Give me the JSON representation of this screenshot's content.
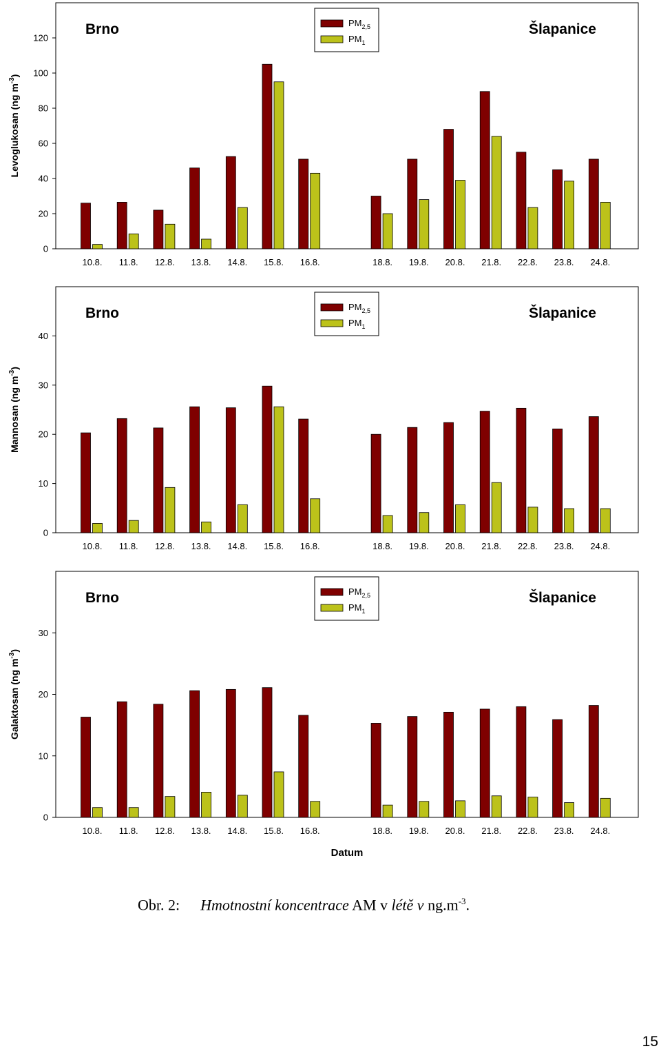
{
  "chart_data": [
    {
      "type": "bar",
      "site_left": "Brno",
      "site_right": "Šlapanice",
      "ylabel": "Levoglukosan (ng m-3)",
      "ylabel_main": "Levoglukosan (ng m",
      "ylabel_sup": "-3",
      "ylabel_end": ")",
      "ylim": [
        0,
        140
      ],
      "yticks": [
        0,
        20,
        40,
        60,
        80,
        100,
        120
      ],
      "categories": [
        "10.8.",
        "11.8.",
        "12.8.",
        "13.8.",
        "14.8.",
        "15.8.",
        "16.8.",
        "18.8.",
        "19.8.",
        "20.8.",
        "21.8.",
        "22.8.",
        "23.8.",
        "24.8."
      ],
      "series": [
        {
          "name": "PM2,5",
          "color": "#7f0000",
          "values": [
            26,
            26.5,
            22,
            46,
            52.5,
            105,
            51,
            30,
            51,
            68,
            89.5,
            55,
            45,
            51
          ]
        },
        {
          "name": "PM1",
          "color": "#bcc21a",
          "values": [
            2.5,
            8.5,
            14,
            5.5,
            23.5,
            95,
            43,
            20,
            28,
            39,
            64,
            23.5,
            38.5,
            26.5
          ]
        }
      ],
      "legend": "top-center",
      "xlabel": ""
    },
    {
      "type": "bar",
      "site_left": "Brno",
      "site_right": "Šlapanice",
      "ylabel": "Mannosan (ng m-3)",
      "ylabel_main": "Mannosan (ng m",
      "ylabel_sup": "-3",
      "ylabel_end": ")",
      "ylim": [
        0,
        50
      ],
      "yticks": [
        0,
        10,
        20,
        30,
        40
      ],
      "categories": [
        "10.8.",
        "11.8.",
        "12.8.",
        "13.8.",
        "14.8.",
        "15.8.",
        "16.8.",
        "18.8.",
        "19.8.",
        "20.8.",
        "21.8.",
        "22.8.",
        "23.8.",
        "24.8."
      ],
      "series": [
        {
          "name": "PM2,5",
          "color": "#7f0000",
          "values": [
            20.3,
            23.2,
            21.3,
            25.6,
            25.4,
            29.8,
            23.1,
            20,
            21.4,
            22.4,
            24.7,
            25.3,
            21.1,
            23.6
          ]
        },
        {
          "name": "PM1",
          "color": "#bcc21a",
          "values": [
            1.9,
            2.5,
            9.2,
            2.2,
            5.7,
            25.6,
            6.9,
            3.5,
            4.1,
            5.7,
            10.2,
            5.2,
            4.9,
            4.9
          ]
        }
      ],
      "legend": "top-center",
      "xlabel": ""
    },
    {
      "type": "bar",
      "site_left": "Brno",
      "site_right": "Šlapanice",
      "ylabel": "Galaktosan (ng m-3)",
      "ylabel_main": "Galaktosan (ng m",
      "ylabel_sup": "-3",
      "ylabel_end": ")",
      "ylim": [
        0,
        40
      ],
      "yticks": [
        0,
        10,
        20,
        30
      ],
      "categories": [
        "10.8.",
        "11.8.",
        "12.8.",
        "13.8.",
        "14.8.",
        "15.8.",
        "16.8.",
        "18.8.",
        "19.8.",
        "20.8.",
        "21.8.",
        "22.8.",
        "23.8.",
        "24.8."
      ],
      "series": [
        {
          "name": "PM2,5",
          "color": "#7f0000",
          "values": [
            16.3,
            18.8,
            18.4,
            20.6,
            20.8,
            21.1,
            16.6,
            15.3,
            16.4,
            17.1,
            17.6,
            18,
            15.9,
            18.2
          ]
        },
        {
          "name": "PM1",
          "color": "#bcc21a",
          "values": [
            1.6,
            1.6,
            3.4,
            4.1,
            3.6,
            7.4,
            2.6,
            2,
            2.6,
            2.7,
            3.5,
            3.3,
            2.4,
            3.1
          ]
        }
      ],
      "legend": "top-center",
      "xlabel": "Datum"
    }
  ],
  "legend_labels": {
    "pm25_main": "PM",
    "pm25_sub": "2,5",
    "pm1_main": "PM",
    "pm1_sub": "1"
  },
  "caption": {
    "label": "Obr. 2:",
    "italic_1": "Hmotnostní koncentrace",
    "plain_1": " AM v ",
    "italic_2": "létě v",
    "plain_2": " ng.m",
    "sup": "-3",
    "end": "."
  },
  "page_number": "15"
}
